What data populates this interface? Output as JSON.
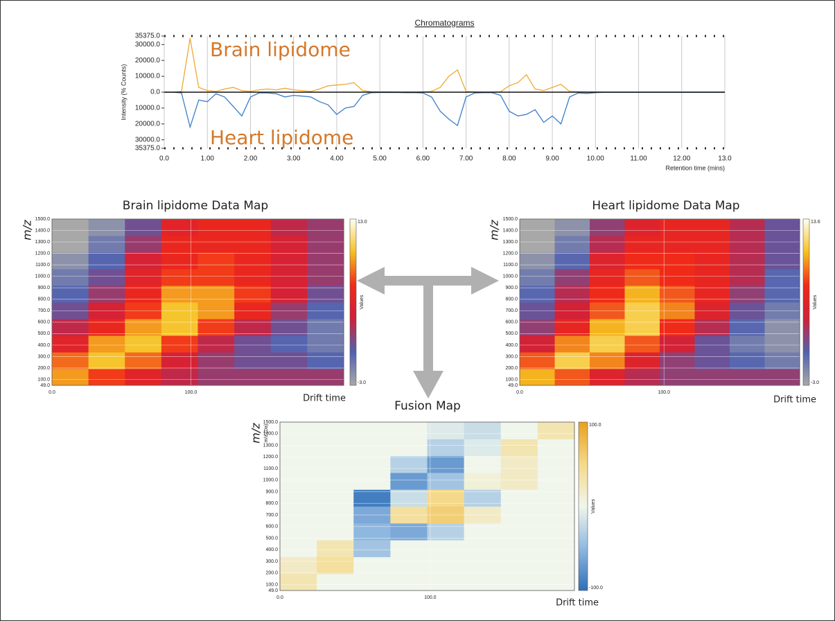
{
  "chart_data": [
    {
      "type": "line",
      "title": "Chromatograms",
      "ylabel": "Intensity (% Counts)",
      "xlabel": "Retention time (mins)",
      "x": [
        0,
        0.2,
        0.4,
        0.6,
        0.8,
        1.0,
        1.2,
        1.4,
        1.6,
        1.8,
        2.0,
        2.2,
        2.4,
        2.6,
        2.8,
        3.0,
        3.2,
        3.4,
        3.6,
        3.8,
        4.0,
        4.2,
        4.4,
        4.6,
        4.8,
        5.0,
        5.2,
        5.4,
        5.6,
        5.8,
        6.0,
        6.2,
        6.4,
        6.6,
        6.8,
        7.0,
        7.2,
        7.4,
        7.6,
        7.8,
        8.0,
        8.2,
        8.4,
        8.6,
        8.8,
        9.0,
        9.2,
        9.4,
        9.6,
        9.8,
        10.0,
        10.2,
        10.4,
        10.6,
        10.8,
        11.0,
        11.2,
        11.4,
        11.6,
        11.8,
        12.0,
        12.2,
        12.4,
        12.6,
        12.8,
        13.0
      ],
      "series": [
        {
          "name": "Brain lipidome",
          "color": "#f0a830",
          "values": [
            0,
            0,
            500,
            34000,
            3000,
            1000,
            500,
            2000,
            3000,
            1000,
            500,
            1500,
            2000,
            1500,
            2500,
            1500,
            1000,
            500,
            2000,
            4000,
            4500,
            5000,
            6000,
            1000,
            300,
            200,
            200,
            100,
            100,
            100,
            200,
            500,
            3000,
            10000,
            14000,
            500,
            200,
            100,
            100,
            300,
            4000,
            6000,
            11000,
            2000,
            1000,
            3000,
            5000,
            500,
            300,
            200,
            200,
            100,
            100,
            100,
            100,
            100,
            100,
            100,
            100,
            100,
            100,
            100,
            100,
            100,
            100,
            100
          ]
        },
        {
          "name": "Heart lipidome",
          "color": "#3a7dc9",
          "values": [
            0,
            0,
            -500,
            -22000,
            -5000,
            -6000,
            -1000,
            -3000,
            -9000,
            -15000,
            -3000,
            -500,
            -500,
            -1000,
            -3000,
            -2000,
            -2500,
            -3000,
            -6000,
            -8000,
            -14000,
            -10000,
            -9000,
            -2000,
            -300,
            -200,
            -200,
            -200,
            -300,
            -300,
            -500,
            -3000,
            -12000,
            -17000,
            -21000,
            -3000,
            -500,
            -300,
            -300,
            -2000,
            -12000,
            -15000,
            -14000,
            -11000,
            -19000,
            -15000,
            -20000,
            -3000,
            -500,
            -800,
            -300,
            -100,
            -100,
            -100,
            -100,
            -100,
            -100,
            -100,
            -100,
            -100,
            -100,
            -100,
            -100,
            -100,
            -100,
            -100
          ]
        }
      ],
      "xlim": [
        0,
        13
      ],
      "ylim": [
        -35375,
        35375
      ],
      "xticks": [
        {
          "value": 0,
          "label": "0.0"
        },
        {
          "value": 1,
          "label": "1.00"
        },
        {
          "value": 2,
          "label": "2.00"
        },
        {
          "value": 3,
          "label": "3.00"
        },
        {
          "value": 4,
          "label": "4.00"
        },
        {
          "value": 5,
          "label": "5.00"
        },
        {
          "value": 6,
          "label": "6.00"
        },
        {
          "value": 7,
          "label": "7.00"
        },
        {
          "value": 8,
          "label": "8.00"
        },
        {
          "value": 9,
          "label": "9.00"
        },
        {
          "value": 10,
          "label": "10.00"
        },
        {
          "value": 11,
          "label": "11.00"
        },
        {
          "value": 12,
          "label": "12.00"
        },
        {
          "value": 13,
          "label": "13.0"
        }
      ],
      "yticks": [
        {
          "value": 35375,
          "label": "35375.0"
        },
        {
          "value": 30000,
          "label": "30000.0"
        },
        {
          "value": 20000,
          "label": "20000.0"
        },
        {
          "value": 10000,
          "label": "10000.0"
        },
        {
          "value": 0,
          "label": "0.0"
        },
        {
          "value": -10000,
          "label": "10000.0"
        },
        {
          "value": -20000,
          "label": "20000.0"
        },
        {
          "value": -30000,
          "label": "30000.0"
        },
        {
          "value": -35375,
          "label": "35375.0"
        }
      ],
      "grid": true
    },
    {
      "type": "heatmap",
      "title": "Brain lipidome Data Map",
      "ylabel": "m/z",
      "xlabel": "Drift time",
      "colorbar_label": "Values",
      "xlim": [
        0,
        210
      ],
      "ylim": [
        49,
        1500
      ],
      "xticks": [
        {
          "value": 0,
          "label": "0.0"
        },
        {
          "value": 100,
          "label": "100.0"
        }
      ],
      "yticks": [
        {
          "value": 49,
          "label": "49.0"
        },
        {
          "value": 100,
          "label": "100.0"
        },
        {
          "value": 200,
          "label": "200.0"
        },
        {
          "value": 300,
          "label": "300.0"
        },
        {
          "value": 400,
          "label": "400.0"
        },
        {
          "value": 500,
          "label": "500.0"
        },
        {
          "value": 600,
          "label": "600.0"
        },
        {
          "value": 700,
          "label": "700.0"
        },
        {
          "value": 800,
          "label": "800.0"
        },
        {
          "value": 900,
          "label": "900.0"
        },
        {
          "value": 1000,
          "label": "1000.0"
        },
        {
          "value": 1100,
          "label": "1100.0"
        },
        {
          "value": 1200,
          "label": "1200.0"
        },
        {
          "value": 1300,
          "label": "1300.0"
        },
        {
          "value": 1400,
          "label": "1400.0"
        },
        {
          "value": 1500,
          "label": "1500.0"
        }
      ],
      "zlim": [
        -3,
        13
      ],
      "zticks": [
        {
          "value": -3,
          "label": "-3.0"
        },
        {
          "value": 13,
          "label": "13.0"
        }
      ],
      "colorscale": [
        "#a8a8a8",
        "#5060b0",
        "#d0203a",
        "#f02818",
        "#f5c020",
        "#fffff0"
      ],
      "z": [
        [
          9,
          7,
          5,
          3,
          2,
          2,
          2,
          2
        ],
        [
          8,
          10,
          8,
          4,
          2,
          1,
          1,
          0
        ],
        [
          5,
          9,
          10,
          7,
          3,
          1,
          0,
          -1
        ],
        [
          3,
          6,
          9,
          10,
          7,
          3,
          1,
          -1
        ],
        [
          1,
          4,
          7,
          10,
          9,
          6,
          2,
          0
        ],
        [
          0,
          2,
          6,
          9,
          9,
          7,
          4,
          1
        ],
        [
          -1,
          1,
          5,
          7,
          7,
          6,
          4,
          2
        ],
        [
          -2,
          0,
          4,
          6,
          7,
          6,
          4,
          2
        ],
        [
          -3,
          -1,
          2,
          6,
          6,
          6,
          4,
          2
        ],
        [
          -3,
          -2,
          1,
          5,
          6,
          6,
          3,
          2
        ]
      ]
    },
    {
      "type": "heatmap",
      "title": "Heart lipidome Data Map",
      "ylabel": "m/z",
      "xlabel": "Drift time",
      "colorbar_label": "Values",
      "xlim": [
        0,
        194
      ],
      "ylim": [
        49,
        1500
      ],
      "xticks": [
        {
          "value": 0,
          "label": "0.0"
        },
        {
          "value": 100,
          "label": "100.0"
        }
      ],
      "yticks": [
        {
          "value": 49,
          "label": "49.0"
        },
        {
          "value": 100,
          "label": "100.0"
        },
        {
          "value": 200,
          "label": "200.0"
        },
        {
          "value": 300,
          "label": "300.0"
        },
        {
          "value": 400,
          "label": "400.0"
        },
        {
          "value": 500,
          "label": "500.0"
        },
        {
          "value": 600,
          "label": "600.0"
        },
        {
          "value": 700,
          "label": "700.0"
        },
        {
          "value": 800,
          "label": "800.0"
        },
        {
          "value": 900,
          "label": "900.0"
        },
        {
          "value": 1000,
          "label": "1000.0"
        },
        {
          "value": 1100,
          "label": "1100.0"
        },
        {
          "value": 1200,
          "label": "1200.0"
        },
        {
          "value": 1300,
          "label": "1300.0"
        },
        {
          "value": 1400,
          "label": "1400.0"
        },
        {
          "value": 1500,
          "label": "1500.0"
        }
      ],
      "zlim": [
        -3,
        13.6
      ],
      "zticks": [
        {
          "value": -3,
          "label": "-3.0"
        },
        {
          "value": 13.6,
          "label": "13.6"
        }
      ],
      "colorscale": [
        "#a8a8a8",
        "#5060b0",
        "#d0203a",
        "#f02818",
        "#f5c020",
        "#fffff0"
      ],
      "z": [
        [
          10,
          8,
          5,
          3,
          2,
          2,
          2,
          2
        ],
        [
          8,
          11,
          9,
          5,
          2,
          1,
          0,
          -1
        ],
        [
          4,
          9,
          11,
          8,
          4,
          1,
          -1,
          -2
        ],
        [
          2,
          6,
          10,
          11,
          7,
          3,
          0,
          -2
        ],
        [
          1,
          4,
          8,
          11,
          9,
          5,
          1,
          -1
        ],
        [
          0,
          3,
          7,
          10,
          8,
          6,
          2,
          0
        ],
        [
          -1,
          2,
          6,
          8,
          7,
          6,
          3,
          0
        ],
        [
          -2,
          0,
          5,
          7,
          7,
          6,
          3,
          1
        ],
        [
          -3,
          -1,
          3,
          6,
          6,
          6,
          3,
          1
        ],
        [
          -3,
          -2,
          2,
          5,
          6,
          6,
          3,
          1
        ]
      ]
    },
    {
      "type": "heatmap",
      "title": "Fusion Map",
      "ylabel": "m/z",
      "ylabel_small": "m/z (Da)",
      "xlabel": "Drift time",
      "colorbar_label": "Values",
      "xlim": [
        0,
        196
      ],
      "ylim": [
        49,
        1500
      ],
      "xticks": [
        {
          "value": 0,
          "label": "0.0"
        },
        {
          "value": 100,
          "label": "100.0"
        }
      ],
      "yticks": [
        {
          "value": 49,
          "label": "49.0"
        },
        {
          "value": 100,
          "label": "100.0"
        },
        {
          "value": 200,
          "label": "200.0"
        },
        {
          "value": 300,
          "label": "300.0"
        },
        {
          "value": 400,
          "label": "400.0"
        },
        {
          "value": 500,
          "label": "500.0"
        },
        {
          "value": 600,
          "label": "600.0"
        },
        {
          "value": 700,
          "label": "700.0"
        },
        {
          "value": 800,
          "label": "800.0"
        },
        {
          "value": 900,
          "label": "900.0"
        },
        {
          "value": 1000,
          "label": "1000.0"
        },
        {
          "value": 1100,
          "label": "1100.0"
        },
        {
          "value": 1200,
          "label": "1200.0"
        },
        {
          "value": 1300,
          "label": "1300.0"
        },
        {
          "value": 1400,
          "label": "1400.0"
        },
        {
          "value": 1500,
          "label": "1500.0"
        }
      ],
      "zlim": [
        -100,
        100
      ],
      "zticks": [
        {
          "value": -100,
          "label": "-100.0"
        },
        {
          "value": 100,
          "label": "100.0"
        }
      ],
      "colorscale": [
        "#2f6fb8",
        "#8fb8e0",
        "#f0f6ec",
        "#f5d98a",
        "#e8a020"
      ],
      "z": [
        [
          30,
          0,
          0,
          0,
          0,
          0,
          0,
          0
        ],
        [
          20,
          40,
          0,
          0,
          0,
          0,
          0,
          0
        ],
        [
          0,
          30,
          -40,
          0,
          0,
          0,
          0,
          0
        ],
        [
          0,
          0,
          -50,
          -60,
          -30,
          0,
          0,
          0
        ],
        [
          0,
          0,
          -60,
          40,
          60,
          20,
          0,
          0
        ],
        [
          0,
          0,
          -90,
          -20,
          50,
          -30,
          0,
          0
        ],
        [
          0,
          0,
          0,
          -70,
          -40,
          10,
          20,
          0
        ],
        [
          0,
          0,
          0,
          -30,
          -70,
          0,
          20,
          0
        ],
        [
          0,
          0,
          0,
          0,
          -30,
          -10,
          30,
          0
        ],
        [
          0,
          0,
          0,
          0,
          -10,
          -20,
          0,
          30
        ]
      ]
    }
  ]
}
